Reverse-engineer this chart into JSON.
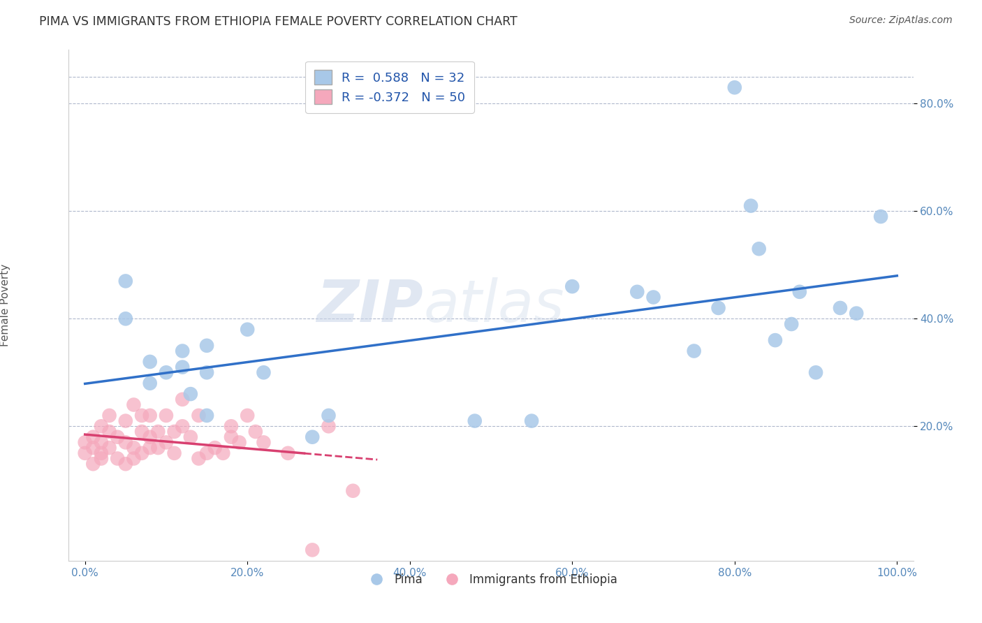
{
  "title": "PIMA VS IMMIGRANTS FROM ETHIOPIA FEMALE POVERTY CORRELATION CHART",
  "source": "Source: ZipAtlas.com",
  "ylabel": "Female Poverty",
  "xlim": [
    -2,
    102
  ],
  "ylim": [
    -5,
    90
  ],
  "x_ticks": [
    0,
    20,
    40,
    60,
    80,
    100
  ],
  "x_tick_labels": [
    "0.0%",
    "20.0%",
    "40.0%",
    "60.0%",
    "80.0%",
    "100.0%"
  ],
  "y_ticks": [
    20,
    40,
    60,
    80
  ],
  "y_tick_labels": [
    "20.0%",
    "40.0%",
    "60.0%",
    "80.0%"
  ],
  "pima_R": 0.588,
  "pima_N": 32,
  "ethiopia_R": -0.372,
  "ethiopia_N": 50,
  "pima_color": "#a8c8e8",
  "ethiopia_color": "#f5a8bc",
  "pima_line_color": "#3070c8",
  "ethiopia_line_color": "#d84070",
  "watermark_zip": "ZIP",
  "watermark_atlas": "atlas",
  "background_color": "#ffffff",
  "pima_x": [
    5,
    5,
    8,
    8,
    10,
    12,
    12,
    13,
    15,
    15,
    15,
    20,
    22,
    28,
    30,
    48,
    55,
    60,
    68,
    70,
    75,
    78,
    80,
    82,
    83,
    85,
    87,
    88,
    90,
    93,
    95,
    98
  ],
  "pima_y": [
    47,
    40,
    32,
    28,
    30,
    34,
    31,
    26,
    30,
    22,
    35,
    38,
    30,
    18,
    22,
    21,
    21,
    46,
    45,
    44,
    34,
    42,
    83,
    61,
    53,
    36,
    39,
    45,
    30,
    42,
    41,
    59
  ],
  "ethiopia_x": [
    0,
    0,
    1,
    1,
    1,
    2,
    2,
    2,
    2,
    3,
    3,
    3,
    4,
    4,
    5,
    5,
    5,
    6,
    6,
    6,
    7,
    7,
    7,
    8,
    8,
    8,
    9,
    9,
    10,
    10,
    11,
    11,
    12,
    12,
    13,
    14,
    14,
    15,
    16,
    17,
    18,
    18,
    19,
    20,
    21,
    22,
    25,
    28,
    30,
    33
  ],
  "ethiopia_y": [
    17,
    15,
    16,
    13,
    18,
    17,
    15,
    20,
    14,
    16,
    19,
    22,
    14,
    18,
    17,
    13,
    21,
    16,
    14,
    24,
    15,
    19,
    22,
    18,
    16,
    22,
    16,
    19,
    17,
    22,
    19,
    15,
    20,
    25,
    18,
    14,
    22,
    15,
    16,
    15,
    18,
    20,
    17,
    22,
    19,
    17,
    15,
    -3,
    20,
    8
  ],
  "eth_solid_end": 27,
  "eth_dash_start": 27,
  "eth_dash_end": 36
}
